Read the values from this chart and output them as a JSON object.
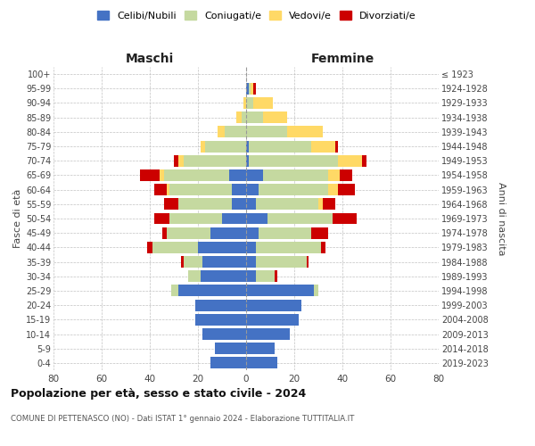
{
  "age_groups": [
    "0-4",
    "5-9",
    "10-14",
    "15-19",
    "20-24",
    "25-29",
    "30-34",
    "35-39",
    "40-44",
    "45-49",
    "50-54",
    "55-59",
    "60-64",
    "65-69",
    "70-74",
    "75-79",
    "80-84",
    "85-89",
    "90-94",
    "95-99",
    "100+"
  ],
  "birth_years": [
    "2019-2023",
    "2014-2018",
    "2009-2013",
    "2004-2008",
    "1999-2003",
    "1994-1998",
    "1989-1993",
    "1984-1988",
    "1979-1983",
    "1974-1978",
    "1969-1973",
    "1964-1968",
    "1959-1963",
    "1954-1958",
    "1949-1953",
    "1944-1948",
    "1939-1943",
    "1934-1938",
    "1929-1933",
    "1924-1928",
    "≤ 1923"
  ],
  "males": {
    "celibi": [
      15,
      13,
      18,
      21,
      21,
      28,
      19,
      18,
      20,
      15,
      10,
      6,
      6,
      7,
      0,
      0,
      0,
      0,
      0,
      0,
      0
    ],
    "coniugati": [
      0,
      0,
      0,
      0,
      0,
      3,
      5,
      8,
      19,
      18,
      22,
      22,
      26,
      27,
      26,
      17,
      9,
      2,
      0,
      0,
      0
    ],
    "vedovi": [
      0,
      0,
      0,
      0,
      0,
      0,
      0,
      0,
      0,
      0,
      0,
      0,
      1,
      2,
      2,
      2,
      3,
      2,
      1,
      0,
      0
    ],
    "divorziati": [
      0,
      0,
      0,
      0,
      0,
      0,
      0,
      1,
      2,
      2,
      6,
      6,
      5,
      8,
      2,
      0,
      0,
      0,
      0,
      0,
      0
    ]
  },
  "females": {
    "nubili": [
      13,
      12,
      18,
      22,
      23,
      28,
      4,
      4,
      4,
      5,
      9,
      4,
      5,
      7,
      1,
      1,
      0,
      0,
      0,
      1,
      0
    ],
    "coniugate": [
      0,
      0,
      0,
      0,
      0,
      2,
      8,
      21,
      27,
      22,
      27,
      26,
      29,
      27,
      37,
      26,
      17,
      7,
      3,
      1,
      0
    ],
    "vedove": [
      0,
      0,
      0,
      0,
      0,
      0,
      0,
      0,
      0,
      0,
      0,
      2,
      4,
      5,
      10,
      10,
      15,
      10,
      8,
      1,
      0
    ],
    "divorziate": [
      0,
      0,
      0,
      0,
      0,
      0,
      1,
      1,
      2,
      7,
      10,
      5,
      7,
      5,
      2,
      1,
      0,
      0,
      0,
      1,
      0
    ]
  },
  "colors": {
    "celibi": "#4472c4",
    "coniugati": "#c5d9a0",
    "vedovi": "#ffd966",
    "divorziati": "#cc0000"
  },
  "xlim": 80,
  "title": "Popolazione per età, sesso e stato civile - 2024",
  "subtitle": "COMUNE DI PETTENASCO (NO) - Dati ISTAT 1° gennaio 2024 - Elaborazione TUTTITALIA.IT",
  "xlabel_left": "Maschi",
  "xlabel_right": "Femmine",
  "ylabel_left": "Fasce di età",
  "ylabel_right": "Anni di nascita",
  "legend_labels": [
    "Celibi/Nubili",
    "Coniugati/e",
    "Vedovi/e",
    "Divorziati/e"
  ],
  "bg_color": "#ffffff",
  "grid_color": "#cccccc"
}
